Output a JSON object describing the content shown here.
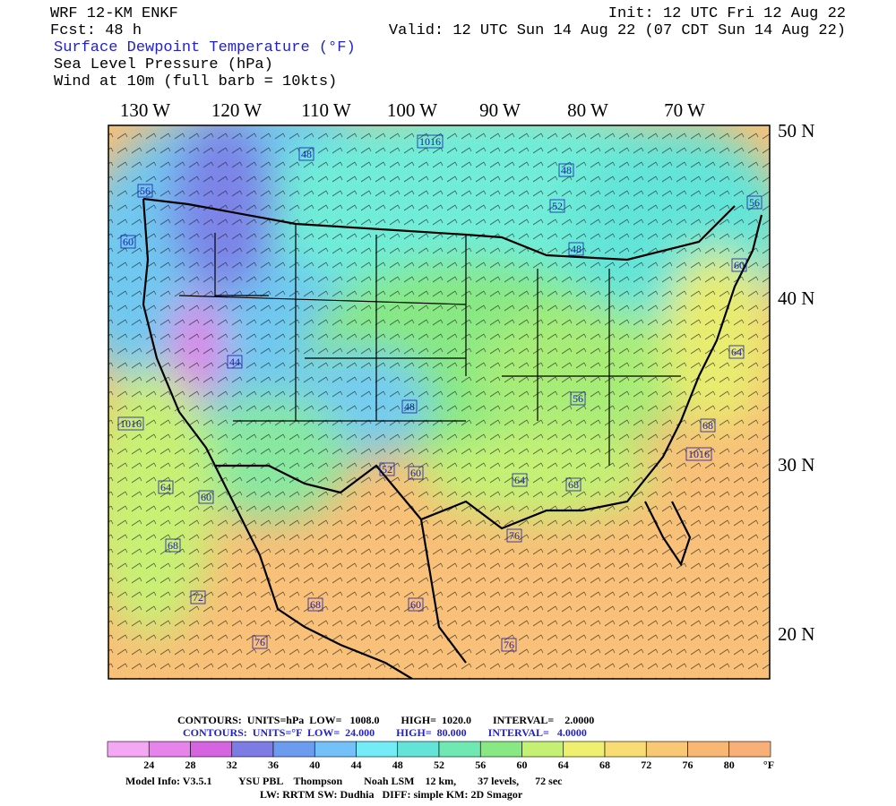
{
  "header": {
    "model": "WRF 12-KM ENKF",
    "init": "Init: 12 UTC Fri 12 Aug 22",
    "forecast": "Fcst:   48 h",
    "valid": "Valid: 12 UTC Sun 14 Aug 22 (07 CDT Sun 14 Aug 22)",
    "field_title": "Surface Dewpoint Temperature (°F)",
    "field_pressure": "Sea Level Pressure (hPa)",
    "field_wind": "Wind at 10m (full barb = 10kts)"
  },
  "map": {
    "longitude_labels": [
      "130 W",
      "120 W",
      "110 W",
      "100 W",
      "90 W",
      "80 W",
      "70 W"
    ],
    "latitude_labels": [
      "50 N",
      "40 N",
      "30 N",
      "20 N"
    ],
    "contour_labels": [
      "48",
      "1016",
      "48",
      "56",
      "52",
      "56",
      "60",
      "48",
      "60",
      "64",
      "44",
      "56",
      "48",
      "1016",
      "68",
      "1016",
      "52",
      "60",
      "64",
      "68",
      "64",
      "60",
      "76",
      "68",
      "72",
      "68",
      "60",
      "76",
      "76"
    ]
  },
  "contour_info": {
    "pressure": "CONTOURS:  UNITS=hPa  LOW=   1008.0        HIGH=  1020.0        INTERVAL=    2.0000",
    "dewpoint": "CONTOURS:  UNITS=°F  LOW=  24.000        HIGH=  80.000        INTERVAL=   4.0000"
  },
  "colorbar": {
    "colors": [
      "#f4a8f4",
      "#e684ec",
      "#d464e0",
      "#7c7ce4",
      "#6c9cf0",
      "#74c0f8",
      "#74ecf8",
      "#64e4d8",
      "#70e8b4",
      "#88e884",
      "#c4f074",
      "#f0f070",
      "#f8dc74",
      "#f8c874",
      "#f8b874",
      "#f8b078"
    ],
    "ticks": [
      24,
      28,
      32,
      36,
      40,
      44,
      48,
      52,
      56,
      60,
      64,
      68,
      72,
      76,
      80
    ],
    "unit": "°F"
  },
  "model_info": {
    "line1": "Model Info: V3.5.1          YSU PBL    Thompson        Noah LSM    12 km,        37 levels,      72 sec",
    "line2": "LW: RRTM SW: Dudhia   DIFF: simple KM: 2D Smagor"
  }
}
